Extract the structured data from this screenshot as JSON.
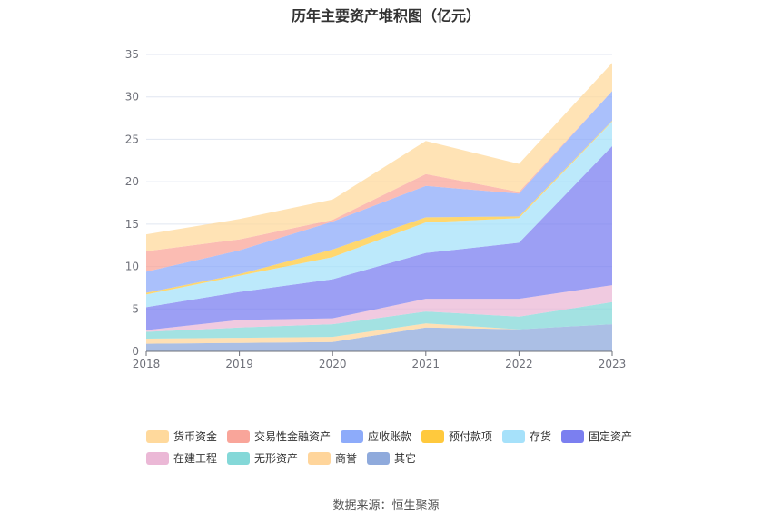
{
  "title": "历年主要资产堆积图（亿元）",
  "source": "数据来源：恒生聚源",
  "chart_data": {
    "type": "area",
    "stacked": true,
    "categories": [
      "2018",
      "2019",
      "2020",
      "2021",
      "2022",
      "2023"
    ],
    "ylim": [
      0,
      35
    ],
    "yticks": [
      0,
      5,
      10,
      15,
      20,
      25,
      30,
      35
    ],
    "grid": true,
    "legend_position": "bottom",
    "series": [
      {
        "name": "其它",
        "color": "#8faadc",
        "values": [
          0.9,
          1.0,
          1.1,
          2.8,
          2.6,
          3.2
        ]
      },
      {
        "name": "商誉",
        "color": "#ffd59b",
        "values": [
          0.6,
          0.6,
          0.6,
          0.5,
          0.0,
          0.0
        ]
      },
      {
        "name": "无形资产",
        "color": "#84d8d8",
        "values": [
          0.8,
          1.2,
          1.5,
          1.4,
          1.5,
          2.6
        ]
      },
      {
        "name": "在建工程",
        "color": "#ebb8d6",
        "values": [
          0.2,
          0.9,
          0.7,
          1.5,
          2.1,
          2.0
        ]
      },
      {
        "name": "固定资产",
        "color": "#7b7ff0",
        "values": [
          2.7,
          3.3,
          4.6,
          5.4,
          6.6,
          16.4
        ]
      },
      {
        "name": "存货",
        "color": "#a6e1fa",
        "values": [
          1.5,
          1.9,
          2.6,
          3.6,
          2.9,
          2.9
        ]
      },
      {
        "name": "预付款项",
        "color": "#ffc93d",
        "values": [
          0.2,
          0.2,
          0.9,
          0.6,
          0.2,
          0.1
        ]
      },
      {
        "name": "应收账款",
        "color": "#8dabfa",
        "values": [
          2.5,
          2.8,
          3.3,
          3.7,
          2.7,
          3.5
        ]
      },
      {
        "name": "交易性金融资产",
        "color": "#f9a59a",
        "values": [
          2.4,
          1.3,
          0.2,
          1.4,
          0.2,
          0.0
        ]
      },
      {
        "name": "货币资金",
        "color": "#ffd99c",
        "values": [
          2.0,
          2.4,
          2.4,
          3.9,
          3.3,
          3.3
        ]
      }
    ],
    "legend_order": [
      "货币资金",
      "交易性金融资产",
      "应收账款",
      "预付款项",
      "存货",
      "固定资产",
      "在建工程",
      "无形资产",
      "商誉",
      "其它"
    ]
  }
}
